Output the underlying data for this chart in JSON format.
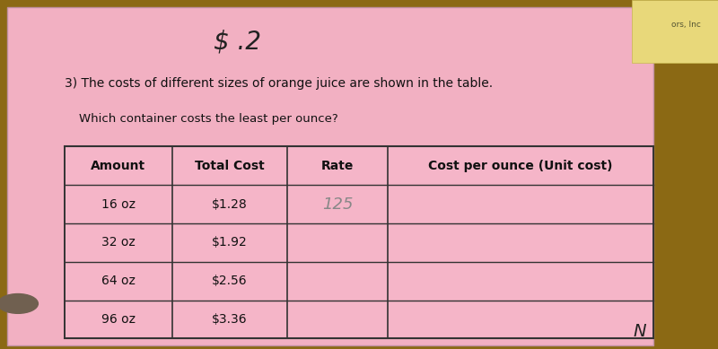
{
  "title_line": "3) The costs of different sizes of orange juice are shown in the table.",
  "subtitle_line": "Which container costs the least per ounce?",
  "handwritten_top": "$ .2",
  "handwritten_rate": "125",
  "col_headers": [
    "Amount",
    "Total Cost",
    "Rate",
    "Cost per ounce (Unit cost)"
  ],
  "rows": [
    [
      "16 oz",
      "$1.28",
      "",
      ""
    ],
    [
      "32 oz",
      "$1.92",
      "",
      ""
    ],
    [
      "64 oz",
      "$2.56",
      "",
      ""
    ],
    [
      "96 oz",
      "$3.36",
      "",
      ""
    ]
  ],
  "desk_color": "#8B6914",
  "paper_color": "#f2b0c2",
  "border_color": "#333333",
  "text_color": "#111111",
  "header_fontsize": 10,
  "body_fontsize": 10,
  "title_fontsize": 10,
  "subtitle_fontsize": 9.5,
  "corner_note": "N",
  "top_right_note": "ors, Inc"
}
